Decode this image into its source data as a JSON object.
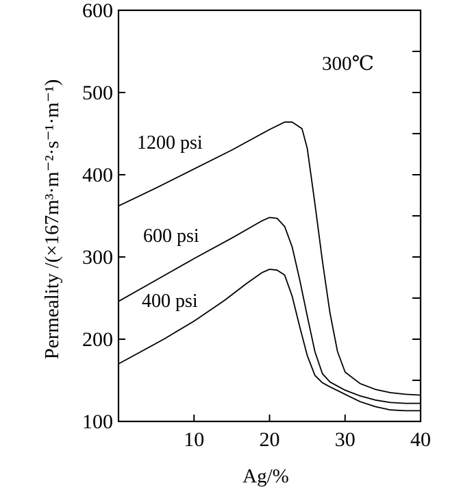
{
  "chart_data": {
    "type": "line",
    "xlabel": "Ag/%",
    "ylabel": "Permeality /(×167m³·m⁻²·s⁻¹·m⁻¹)",
    "annotation": "300℃",
    "xlim": [
      0,
      40
    ],
    "ylim": [
      100,
      600
    ],
    "x_ticks": [
      10,
      20,
      30,
      40
    ],
    "y_ticks": [
      100,
      200,
      300,
      400,
      500,
      600
    ],
    "x_tick_labels": [
      "10",
      "20",
      "30",
      "40"
    ],
    "y_tick_labels": [
      "100",
      "200",
      "300",
      "400",
      "500",
      "600"
    ],
    "grid": false,
    "series": [
      {
        "name": "1200 psi",
        "points": [
          [
            0,
            362
          ],
          [
            5,
            384
          ],
          [
            10,
            407
          ],
          [
            15,
            430
          ],
          [
            20,
            455
          ],
          [
            22,
            464
          ],
          [
            23,
            464
          ],
          [
            24.3,
            456
          ],
          [
            25,
            432
          ],
          [
            26,
            365
          ],
          [
            27,
            295
          ],
          [
            28,
            232
          ],
          [
            29,
            185
          ],
          [
            30,
            160
          ],
          [
            32,
            146
          ],
          [
            34,
            139
          ],
          [
            36,
            135
          ],
          [
            38,
            133
          ],
          [
            40,
            132
          ]
        ]
      },
      {
        "name": "600 psi",
        "points": [
          [
            0,
            246
          ],
          [
            5,
            272
          ],
          [
            10,
            298
          ],
          [
            15,
            323
          ],
          [
            19,
            344
          ],
          [
            20,
            348
          ],
          [
            21,
            347
          ],
          [
            22,
            337
          ],
          [
            23,
            312
          ],
          [
            24,
            272
          ],
          [
            25,
            228
          ],
          [
            26,
            185
          ],
          [
            27,
            158
          ],
          [
            28,
            148
          ],
          [
            30,
            138
          ],
          [
            32,
            131
          ],
          [
            34,
            126
          ],
          [
            36,
            123
          ],
          [
            38,
            122
          ],
          [
            40,
            122
          ]
        ]
      },
      {
        "name": "400 psi",
        "points": [
          [
            0,
            170
          ],
          [
            3,
            185
          ],
          [
            6,
            200
          ],
          [
            10,
            222
          ],
          [
            14,
            247
          ],
          [
            17,
            268
          ],
          [
            19,
            281
          ],
          [
            20,
            285
          ],
          [
            21,
            284
          ],
          [
            22,
            278
          ],
          [
            23,
            252
          ],
          [
            24,
            215
          ],
          [
            25,
            180
          ],
          [
            26,
            156
          ],
          [
            27,
            147
          ],
          [
            28,
            142
          ],
          [
            30,
            133
          ],
          [
            32,
            124
          ],
          [
            34,
            118
          ],
          [
            36,
            114
          ],
          [
            38,
            113
          ],
          [
            40,
            113
          ]
        ]
      }
    ]
  }
}
